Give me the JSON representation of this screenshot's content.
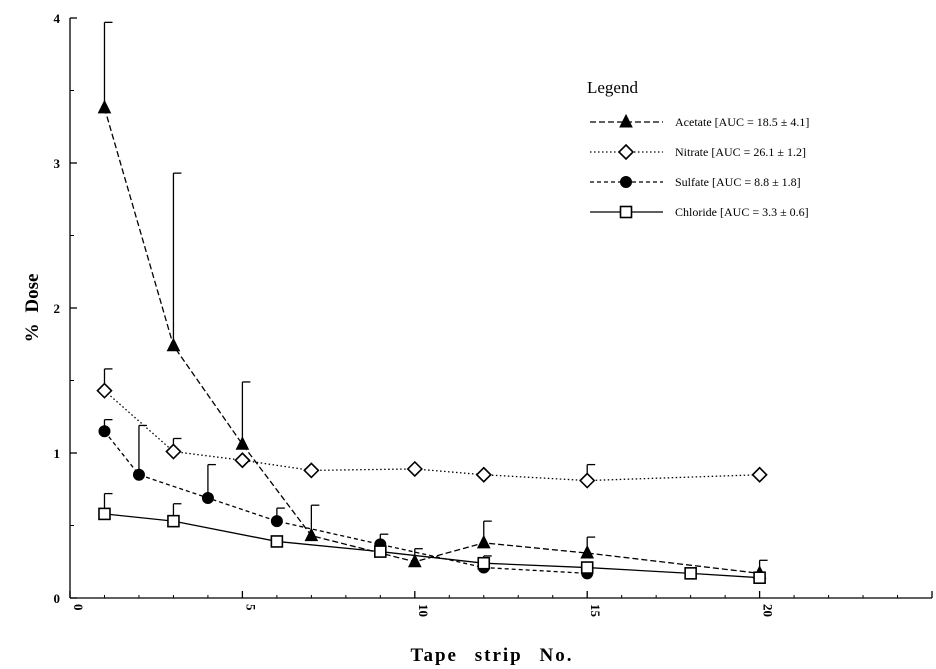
{
  "chart_data": {
    "type": "line",
    "title": "",
    "xlabel": "Tape strip No.",
    "ylabel": "% Dose",
    "xlim": [
      0,
      25
    ],
    "ylim": [
      0,
      4
    ],
    "xticks": [
      "0",
      "5",
      "10",
      "15",
      "20",
      "25"
    ],
    "yticks": [
      "0",
      "1",
      "2",
      "3",
      "4"
    ],
    "grid": false,
    "legend": {
      "title": "Legend",
      "placement": "top-right"
    },
    "series": [
      {
        "name": "Acetate",
        "legend_label": "Acetate [AUC = 18.5 ± 4.1]",
        "marker": "filled-triangle",
        "line_style": "dashed",
        "x": [
          1,
          3,
          5,
          7,
          10,
          12,
          15,
          20
        ],
        "y": [
          3.38,
          1.74,
          1.06,
          0.43,
          0.25,
          0.38,
          0.31,
          0.17
        ],
        "error_upper": [
          3.97,
          2.93,
          1.49,
          0.64,
          0.34,
          0.53,
          0.42,
          0.26
        ]
      },
      {
        "name": "Nitrate",
        "legend_label": "Nitrate [AUC = 26.1 ± 1.2]",
        "marker": "open-diamond",
        "line_style": "dotted",
        "x": [
          1,
          3,
          5,
          7,
          10,
          12,
          15,
          20
        ],
        "y": [
          1.43,
          1.01,
          0.95,
          0.88,
          0.89,
          0.85,
          0.81,
          0.85
        ],
        "error_upper": [
          1.58,
          1.1,
          0.95,
          0.88,
          0.89,
          0.85,
          0.92,
          0.85
        ]
      },
      {
        "name": "Sulfate",
        "legend_label": "Sulfate [AUC = 8.8 ± 1.8]",
        "marker": "filled-circle",
        "line_style": "short-dashed",
        "x": [
          1,
          2,
          4,
          6,
          9,
          12,
          15
        ],
        "y": [
          1.15,
          0.85,
          0.69,
          0.53,
          0.37,
          0.21,
          0.17
        ],
        "error_upper": [
          1.23,
          1.19,
          0.92,
          0.62,
          0.44,
          0.21,
          0.17
        ]
      },
      {
        "name": "Chloride",
        "legend_label": "Chloride [AUC = 3.3 ± 0.6]",
        "marker": "open-square",
        "line_style": "solid",
        "x": [
          1,
          3,
          6,
          9,
          12,
          15,
          18,
          20
        ],
        "y": [
          0.58,
          0.53,
          0.39,
          0.32,
          0.24,
          0.21,
          0.17,
          0.14
        ],
        "error_upper": [
          0.72,
          0.65,
          0.39,
          0.32,
          0.29,
          0.21,
          0.17,
          0.14
        ]
      }
    ]
  }
}
